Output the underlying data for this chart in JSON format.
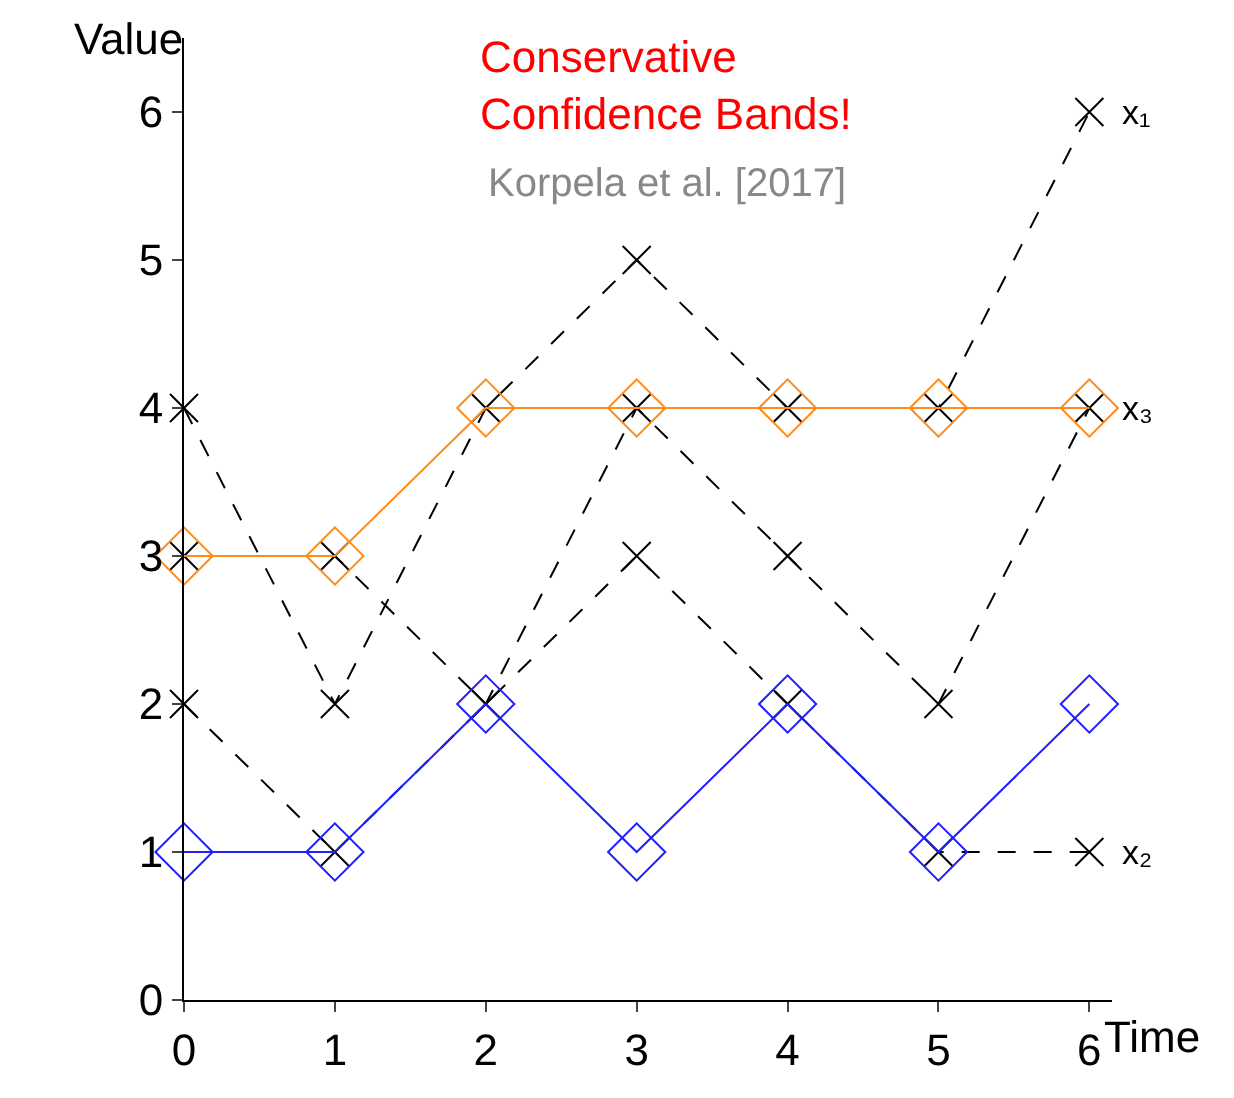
{
  "chart_data": {
    "type": "line",
    "title": "Conservative\nConfidence Bands!",
    "subtitle": "Korpela et al. [2017]",
    "xlabel": "Time",
    "ylabel": "Value",
    "x": [
      0,
      1,
      2,
      3,
      4,
      5,
      6
    ],
    "series": [
      {
        "name": "x₁",
        "color": "#000000",
        "values": [
          4,
          2,
          4,
          5,
          4,
          4,
          6
        ],
        "marker": "cross",
        "line_style": "dashed"
      },
      {
        "name": "x₂",
        "color": "#000000",
        "values": [
          2,
          1,
          2,
          3,
          2,
          1,
          1
        ],
        "marker": "cross",
        "line_style": "dashed"
      },
      {
        "name": "x₃",
        "color": "#000000",
        "values": [
          3,
          3,
          2,
          4,
          3,
          2,
          4
        ],
        "marker": "cross",
        "line_style": "dashed"
      },
      {
        "color": "#ff8c1a",
        "values": [
          3,
          3,
          4,
          4,
          4,
          4,
          4
        ],
        "marker": "diamond",
        "line_style": "solid"
      },
      {
        "color": "#1f1fff",
        "values": [
          1,
          1,
          2,
          1,
          2,
          1,
          2
        ],
        "marker": "diamond",
        "line_style": "solid"
      }
    ],
    "xlim": [
      0,
      6.15
    ],
    "ylim": [
      0,
      6.5
    ],
    "xticks": [
      0,
      1,
      2,
      3,
      4,
      5,
      6
    ],
    "yticks": [
      0,
      1,
      2,
      3,
      4,
      5,
      6
    ]
  }
}
